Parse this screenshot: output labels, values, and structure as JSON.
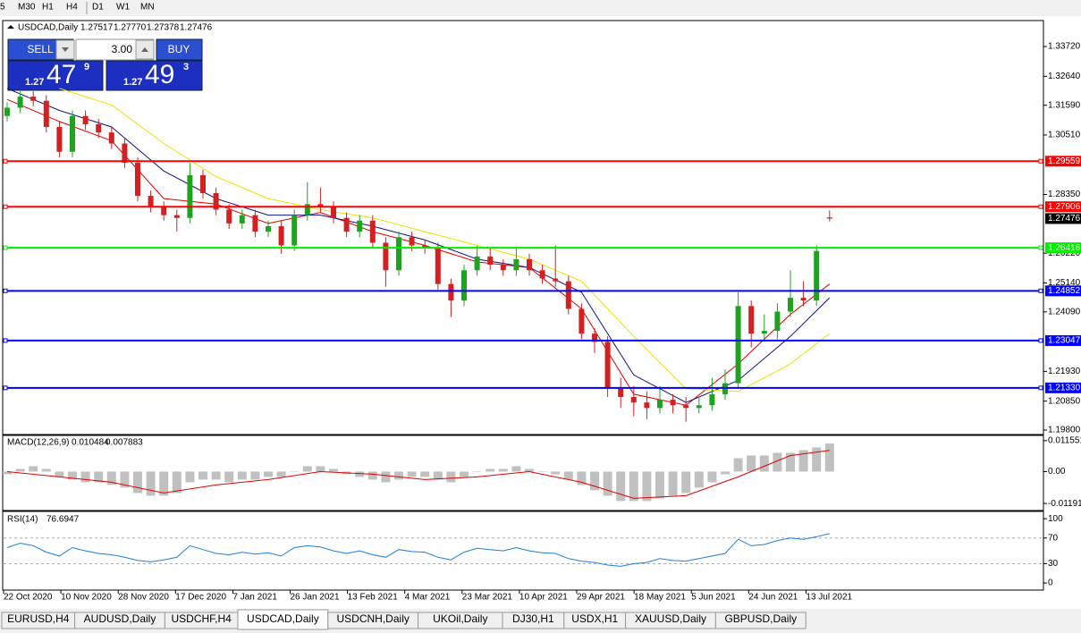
{
  "toolbar": [
    "5",
    "M30",
    "H1",
    "H4",
    "D1",
    "W1",
    "MN"
  ],
  "trade_panel": {
    "sell": "SELL",
    "lot": "3.00",
    "buy": "BUY",
    "bid": {
      "big_figure": "1.27",
      "pips": "47",
      "fraction": "9"
    },
    "ask": {
      "big_figure": "1.27",
      "pips": "49",
      "fraction": "3"
    }
  },
  "tabs": [
    "EURUSD,H4",
    "AUDUSD,Daily",
    "USDCHF,H4",
    "USDCAD,Daily",
    "USDCNH,Daily",
    "UKOil,Daily",
    "DJ30,H1",
    "USDX,H1",
    "XAUUSD,Daily",
    "GBPUSD,Daily"
  ],
  "active_tab": 3,
  "chart_data": {
    "type": "candlestick",
    "header": {
      "symbol": "USDCAD,Daily",
      "ohlc_labels": [
        "1.27517",
        "1.27770",
        "1.27378",
        "1.27476"
      ]
    },
    "up_color": "#1fa31f",
    "down_color": "#d42020",
    "candles": [
      [
        1.312,
        1.317,
        1.31,
        1.315
      ],
      [
        1.315,
        1.321,
        1.313,
        1.319
      ],
      [
        1.319,
        1.321,
        1.3155,
        1.3175
      ],
      [
        1.3175,
        1.3195,
        1.306,
        1.308
      ],
      [
        1.308,
        1.31,
        1.297,
        1.299
      ],
      [
        1.299,
        1.314,
        1.297,
        1.312
      ],
      [
        1.312,
        1.314,
        1.307,
        1.309
      ],
      [
        1.309,
        1.311,
        1.304,
        1.306
      ],
      [
        1.306,
        1.308,
        1.3,
        1.302
      ],
      [
        1.302,
        1.304,
        1.293,
        1.295
      ],
      [
        1.295,
        1.297,
        1.281,
        1.283
      ],
      [
        1.283,
        1.285,
        1.277,
        1.279
      ],
      [
        1.279,
        1.281,
        1.274,
        1.276
      ],
      [
        1.276,
        1.278,
        1.27,
        1.275
      ],
      [
        1.275,
        1.295,
        1.273,
        1.2905
      ],
      [
        1.2905,
        1.2925,
        1.282,
        1.284
      ],
      [
        1.284,
        1.286,
        1.276,
        1.278
      ],
      [
        1.278,
        1.28,
        1.271,
        1.273
      ],
      [
        1.273,
        1.278,
        1.271,
        1.276
      ],
      [
        1.276,
        1.278,
        1.268,
        1.27
      ],
      [
        1.27,
        1.274,
        1.268,
        1.272
      ],
      [
        1.272,
        1.274,
        1.262,
        1.265
      ],
      [
        1.265,
        1.278,
        1.263,
        1.276
      ],
      [
        1.276,
        1.288,
        1.274,
        1.28
      ],
      [
        1.28,
        1.286,
        1.277,
        1.279
      ],
      [
        1.279,
        1.281,
        1.273,
        1.275
      ],
      [
        1.275,
        1.277,
        1.268,
        1.27
      ],
      [
        1.27,
        1.276,
        1.268,
        1.274
      ],
      [
        1.274,
        1.276,
        1.264,
        1.266
      ],
      [
        1.266,
        1.268,
        1.25,
        1.256
      ],
      [
        1.256,
        1.27,
        1.254,
        1.268
      ],
      [
        1.268,
        1.27,
        1.263,
        1.265
      ],
      [
        1.265,
        1.267,
        1.262,
        1.264
      ],
      [
        1.264,
        1.266,
        1.249,
        1.251
      ],
      [
        1.251,
        1.253,
        1.239,
        1.245
      ],
      [
        1.245,
        1.258,
        1.243,
        1.256
      ],
      [
        1.256,
        1.265,
        1.254,
        1.261
      ],
      [
        1.261,
        1.264,
        1.256,
        1.258
      ],
      [
        1.258,
        1.26,
        1.254,
        1.256
      ],
      [
        1.256,
        1.264,
        1.254,
        1.26
      ],
      [
        1.26,
        1.262,
        1.254,
        1.256
      ],
      [
        1.256,
        1.258,
        1.251,
        1.253
      ],
      [
        1.253,
        1.265,
        1.25,
        1.252
      ],
      [
        1.252,
        1.254,
        1.24,
        1.242
      ],
      [
        1.242,
        1.244,
        1.231,
        1.233
      ],
      [
        1.233,
        1.235,
        1.226,
        1.23
      ],
      [
        1.23,
        1.232,
        1.21,
        1.213
      ],
      [
        1.213,
        1.217,
        1.206,
        1.21
      ],
      [
        1.21,
        1.214,
        1.203,
        1.208
      ],
      [
        1.208,
        1.212,
        1.202,
        1.206
      ],
      [
        1.206,
        1.214,
        1.204,
        1.209
      ],
      [
        1.209,
        1.211,
        1.204,
        1.207
      ],
      [
        1.207,
        1.21,
        1.201,
        1.206
      ],
      [
        1.206,
        1.21,
        1.204,
        1.207
      ],
      [
        1.207,
        1.217,
        1.205,
        1.211
      ],
      [
        1.211,
        1.22,
        1.209,
        1.215
      ],
      [
        1.215,
        1.248,
        1.213,
        1.243
      ],
      [
        1.243,
        1.245,
        1.228,
        1.233
      ],
      [
        1.233,
        1.24,
        1.23,
        1.234
      ],
      [
        1.234,
        1.244,
        1.231,
        1.241
      ],
      [
        1.241,
        1.256,
        1.239,
        1.246
      ],
      [
        1.246,
        1.252,
        1.243,
        1.245
      ],
      [
        1.245,
        1.265,
        1.243,
        1.263
      ],
      [
        1.27517,
        1.2777,
        1.27378,
        1.27476
      ]
    ],
    "ma_index": [
      0,
      4,
      8,
      12,
      16,
      20,
      24,
      28,
      32,
      36,
      40,
      44,
      48,
      52,
      56,
      60,
      63
    ],
    "moving_averages": [
      {
        "color": "#e00000",
        "values": [
          1.318,
          1.31,
          1.303,
          1.282,
          1.28,
          1.273,
          1.277,
          1.27,
          1.265,
          1.259,
          1.257,
          1.242,
          1.211,
          1.207,
          1.222,
          1.24,
          1.251
        ]
      },
      {
        "color": "#10108c",
        "values": [
          1.322,
          1.314,
          1.308,
          1.292,
          1.282,
          1.276,
          1.276,
          1.272,
          1.267,
          1.26,
          1.257,
          1.248,
          1.218,
          1.208,
          1.216,
          1.232,
          1.246
        ]
      },
      {
        "color": "#f0e000",
        "values": [
          null,
          1.322,
          1.316,
          1.302,
          1.29,
          1.282,
          1.278,
          1.275,
          1.27,
          1.265,
          1.26,
          1.252,
          1.232,
          1.213,
          1.212,
          1.222,
          1.233
        ]
      }
    ],
    "ylim": [
      1.1967,
      1.3463
    ],
    "yticks": [
      {
        "value": 1.3372,
        "label": "1.33720"
      },
      {
        "value": 1.3264,
        "label": "1.32640"
      },
      {
        "value": 1.3159,
        "label": "1.31590"
      },
      {
        "value": 1.3051,
        "label": "1.30510"
      },
      {
        "value": 1.2835,
        "label": "1.28350"
      },
      {
        "value": 1.2622,
        "label": "1.26220"
      },
      {
        "value": 1.2514,
        "label": "1.25140"
      },
      {
        "value": 1.2409,
        "label": "1.24090"
      },
      {
        "value": 1.2193,
        "label": "1.21930"
      },
      {
        "value": 1.2085,
        "label": "1.20850"
      },
      {
        "value": 1.198,
        "label": "1.19800"
      }
    ],
    "levels": [
      {
        "value": 1.29559,
        "color": "#ff0000"
      },
      {
        "value": 1.27906,
        "color": "#ff0000"
      },
      {
        "value": 1.26416,
        "color": "#00ee00"
      },
      {
        "value": 1.24852,
        "color": "#0000ff"
      },
      {
        "value": 1.23047,
        "color": "#0000ff"
      },
      {
        "value": 1.2133,
        "label": "1.21330",
        "color": "#0000ff"
      }
    ],
    "date_labels": [
      "22 Oct 2020",
      "10 Nov 2020",
      "28 Nov 2020",
      "17 Dec 2020",
      "7 Jan 2021",
      "26 Jan 2021",
      "13 Feb 2021",
      "4 Mar 2021",
      "23 Mar 2021",
      "10 Apr 2021",
      "29 Apr 2021",
      "18 May 2021",
      "5 Jun 2021",
      "24 Jun 2021",
      "13 Jul 2021"
    ],
    "macd": {
      "name": "MACD(12,26,9)",
      "main": 0.010484,
      "signal_value": 0.007883,
      "ylim": [
        -0.0142,
        0.0135
      ],
      "yticks": [
        0.011551,
        {
          "value": 0,
          "label": "0.00"
        },
        -0.011914
      ],
      "histogram_color": "#c0c0c0",
      "signal_color": "#e00000",
      "histogram": [
        -0.001,
        0.001,
        0.002,
        0.001,
        -0.002,
        -0.003,
        -0.004,
        -0.004,
        -0.005,
        -0.006,
        -0.008,
        -0.009,
        -0.009,
        -0.008,
        -0.004,
        -0.003,
        -0.003,
        -0.004,
        -0.003,
        -0.003,
        -0.002,
        -0.002,
        0,
        0.002,
        0.002,
        0.001,
        -0.001,
        -0.002,
        -0.003,
        -0.004,
        -0.003,
        -0.002,
        -0.002,
        -0.003,
        -0.004,
        -0.002,
        0,
        0.001,
        0.001,
        0.002,
        0.001,
        0,
        -0.001,
        -0.003,
        -0.005,
        -0.007,
        -0.009,
        -0.011,
        -0.011,
        -0.011,
        -0.01,
        -0.009,
        -0.008,
        -0.006,
        -0.004,
        -0.001,
        0.005,
        0.006,
        0.006,
        0.007,
        0.007,
        0.008,
        0.009,
        0.010484
      ],
      "signal": [
        0,
        -0.002,
        -0.004,
        -0.008,
        -0.005,
        -0.003,
        0,
        -0.001,
        -0.003,
        -0.002,
        0,
        -0.004,
        -0.01,
        -0.009,
        -0.002,
        0.006,
        0.007883
      ]
    },
    "rsi": {
      "name": "RSI(14)",
      "value": 76.6947,
      "color": "#1e7fd8",
      "ylim": [
        -11,
        110
      ],
      "yticks": [
        100,
        70,
        30,
        0
      ],
      "levels": [
        70,
        30
      ],
      "values": [
        55,
        62,
        58,
        48,
        42,
        55,
        50,
        46,
        44,
        40,
        35,
        33,
        36,
        40,
        58,
        52,
        46,
        44,
        48,
        45,
        47,
        42,
        55,
        58,
        56,
        50,
        46,
        50,
        44,
        40,
        52,
        49,
        48,
        40,
        36,
        48,
        54,
        52,
        50,
        55,
        50,
        47,
        46,
        38,
        34,
        32,
        28,
        26,
        30,
        32,
        38,
        35,
        34,
        38,
        42,
        46,
        68,
        58,
        60,
        66,
        70,
        68,
        72,
        76.6947
      ]
    }
  }
}
